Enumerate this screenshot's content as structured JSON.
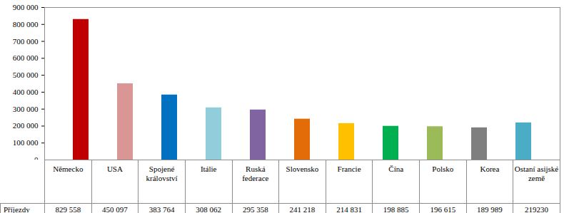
{
  "chart_data": {
    "type": "bar",
    "categories": [
      "Německo",
      "USA",
      "Spojené království",
      "Itálie",
      "Ruská federace",
      "Slovensko",
      "Francie",
      "Čína",
      "Polsko",
      "Korea",
      "Ostaní asijské země"
    ],
    "series": [
      {
        "name": "Příjezdy",
        "values": [
          829558,
          450097,
          383764,
          308062,
          295358,
          241218,
          214831,
          198885,
          196615,
          189989,
          219230
        ],
        "value_labels": [
          "829 558",
          "450 097",
          "383 764",
          "308 062",
          "295 358",
          "241 218",
          "214 831",
          "198 885",
          "196 615",
          "189 989",
          "219230"
        ],
        "colors": [
          "#c00000",
          "#d99694",
          "#0070c0",
          "#92cddc",
          "#8064a2",
          "#e36c09",
          "#ffc000",
          "#00b050",
          "#9bbb59",
          "#7f7f7f",
          "#4bacc6"
        ]
      }
    ],
    "ylim": [
      0,
      900000
    ],
    "yticks": [
      0,
      {
        "value": 100000,
        "label": "100 000"
      },
      {
        "value": 200000,
        "label": "200 000"
      },
      {
        "value": 300000,
        "label": "300 000"
      },
      {
        "value": 400000,
        "label": "400 000"
      },
      {
        "value": 500000,
        "label": "500 000"
      },
      {
        "value": 600000,
        "label": "600 000"
      },
      {
        "value": 700000,
        "label": "700 000"
      },
      {
        "value": 800000,
        "label": "800 000"
      },
      {
        "value": 900000,
        "label": "900 000"
      }
    ],
    "grid": false
  }
}
